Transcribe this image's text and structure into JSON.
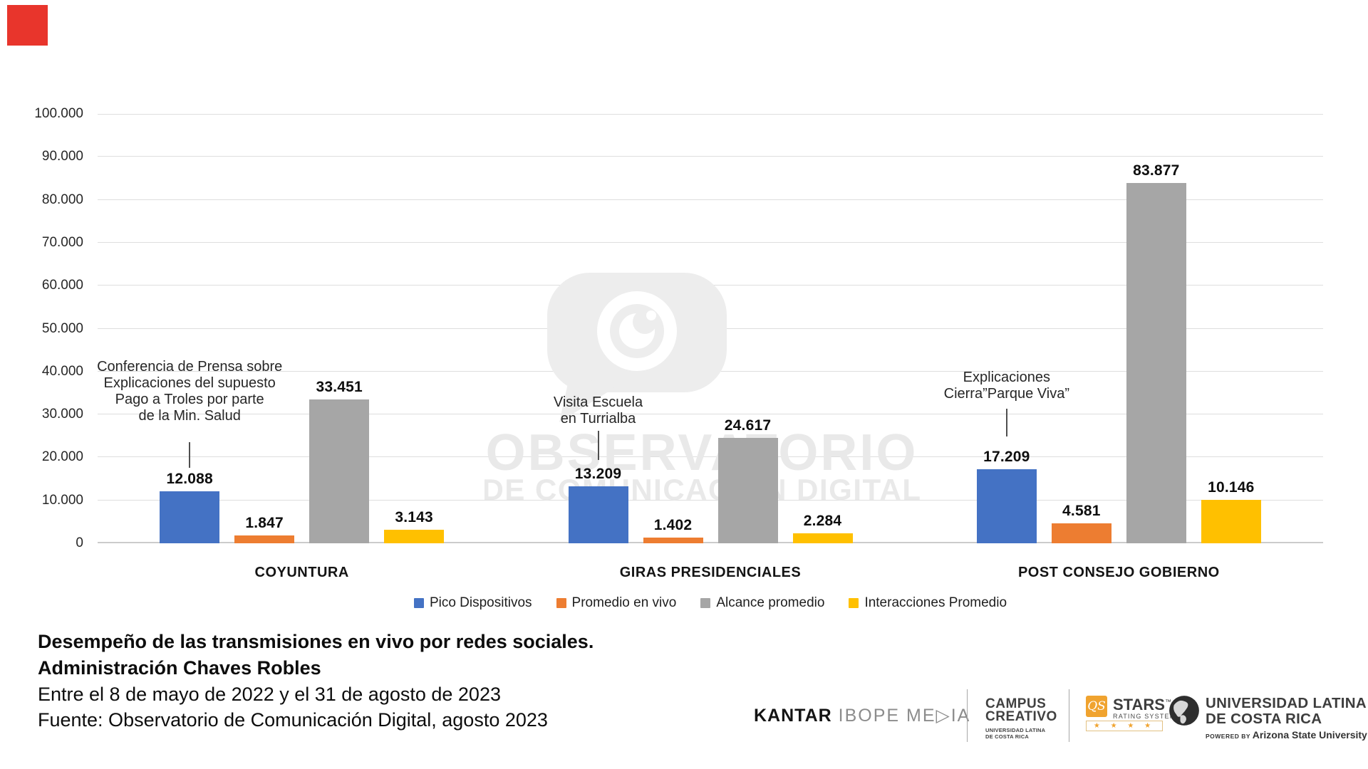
{
  "accent": {
    "square_color": "#e8352c"
  },
  "chart_data": {
    "type": "bar",
    "categories": [
      "COYUNTURA",
      "GIRAS PRESIDENCIALES",
      "POST CONSEJO GOBIERNO"
    ],
    "series": [
      {
        "name": "Pico Dispositivos",
        "color": "#4472C4",
        "values": [
          12088,
          13209,
          17209
        ],
        "value_labels": [
          "12.088",
          "13.209",
          "17.209"
        ]
      },
      {
        "name": "Promedio en vivo",
        "color": "#ED7D31",
        "values": [
          1847,
          1402,
          4581
        ],
        "value_labels": [
          "1.847",
          "1.402",
          "4.581"
        ]
      },
      {
        "name": "Alcance promedio",
        "color": "#A6A6A6",
        "values": [
          33451,
          24617,
          83877
        ],
        "value_labels": [
          "33.451",
          "24.617",
          "83.877"
        ]
      },
      {
        "name": "Interacciones Promedio",
        "color": "#FFC000",
        "values": [
          3143,
          2284,
          10146
        ],
        "value_labels": [
          "3.143",
          "2.284",
          "10.146"
        ]
      }
    ],
    "ylim": [
      0,
      100000
    ],
    "ytick_step": 10000,
    "ytick_labels": [
      "0",
      "10.000",
      "20.000",
      "30.000",
      "40.000",
      "50.000",
      "60.000",
      "70.000",
      "80.000",
      "90.000",
      "100.000"
    ],
    "grid": true,
    "legend_position": "bottom",
    "annotations": [
      {
        "category": "COYUNTURA",
        "series": "Pico Dispositivos",
        "lines": [
          "Conferencia de Prensa sobre",
          "Explicaciones del supuesto",
          "Pago a Troles por parte",
          "de la Min. Salud"
        ]
      },
      {
        "category": "GIRAS PRESIDENCIALES",
        "series": "Pico Dispositivos",
        "lines": [
          "Visita Escuela",
          "en Turrialba"
        ]
      },
      {
        "category": "POST CONSEJO GOBIERNO",
        "series": "Pico Dispositivos",
        "lines": [
          "Explicaciones",
          "Cierra”Parque Viva”"
        ]
      }
    ]
  },
  "watermark": {
    "line1": "OBSERVATORIO",
    "line2": "DE COMUNICACIÓN DIGITAL"
  },
  "footer": {
    "title_line1": "Desempeño de las transmisiones en vivo por redes sociales.",
    "title_line2": "Administración Chaves Robles",
    "subtitle_line1": "Entre el 8 de mayo de 2022 y el 31 de agosto de 2023",
    "subtitle_line2": "Fuente: Observatorio de Comunicación Digital, agosto 2023"
  },
  "logos": {
    "kantar": {
      "black": "KANTAR",
      "gray": " IBOPE ME▷IA"
    },
    "campus": {
      "line1": "CAMPUS",
      "line2": "CREATIVO",
      "sub1": "UNIVERSIDAD LATINA",
      "sub2": "DE COSTA RICA"
    },
    "qs": {
      "abbr": "QS",
      "name": "STARS",
      "tm": "™",
      "sub": "RATING SYSTEM",
      "stars": "★ ★ ★ ★"
    },
    "ulatina": {
      "line1": "UNIVERSIDAD LATINA",
      "line2": "DE COSTA RICA",
      "powered_small": "POWERED BY ",
      "powered_big": "Arizona State University"
    }
  }
}
